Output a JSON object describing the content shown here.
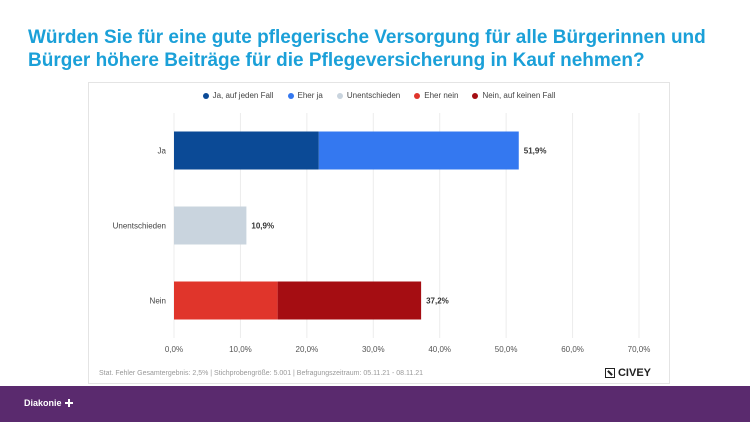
{
  "headline": "Würden Sie für eine gute pflegerische Versorgung für alle Bürgerinnen und Bürger höhere Beiträge für die Pflegeversicherung in Kauf nehmen?",
  "source_note": "Stat. Fehler Gesamtergebnis: 2,5% | Stichprobengröße: 5.001 | Befragungszeitraum: 05.11.21 - 08.11.21",
  "civey_label": "CIVEY",
  "diakonie_label": "Diakonie",
  "colors": {
    "headline": "#1ba0d8",
    "footer": "#5a2a6e"
  },
  "chart_data": {
    "type": "bar",
    "orientation": "horizontal",
    "stacked": true,
    "legend_position": "top",
    "legend": [
      {
        "label": "Ja, auf jeden Fall",
        "color": "#0b4a96"
      },
      {
        "label": "Eher ja",
        "color": "#3478f0"
      },
      {
        "label": "Unentschieden",
        "color": "#c9d4de"
      },
      {
        "label": "Eher nein",
        "color": "#e0352b"
      },
      {
        "label": "Nein, auf keinen Fall",
        "color": "#a50d12"
      }
    ],
    "categories": [
      "Ja",
      "Unentschieden",
      "Nein"
    ],
    "bars": [
      {
        "category": "Ja",
        "total_label": "51,9%",
        "segments": [
          {
            "series": "Ja, auf jeden Fall",
            "value": 21.8,
            "color": "#0b4a96"
          },
          {
            "series": "Eher ja",
            "value": 30.1,
            "color": "#3478f0"
          }
        ]
      },
      {
        "category": "Unentschieden",
        "total_label": "10,9%",
        "segments": [
          {
            "series": "Unentschieden",
            "value": 10.9,
            "color": "#c9d4de"
          }
        ]
      },
      {
        "category": "Nein",
        "total_label": "37,2%",
        "segments": [
          {
            "series": "Eher nein",
            "value": 15.6,
            "color": "#e0352b"
          },
          {
            "series": "Nein, auf keinen Fall",
            "value": 21.6,
            "color": "#a50d12"
          }
        ]
      }
    ],
    "xlim": [
      0,
      70
    ],
    "xticks": [
      0,
      10,
      20,
      30,
      40,
      50,
      60,
      70
    ],
    "xtick_labels": [
      "0,0%",
      "10,0%",
      "20,0%",
      "30,0%",
      "40,0%",
      "50,0%",
      "60,0%",
      "70,0%"
    ],
    "grid": true
  }
}
